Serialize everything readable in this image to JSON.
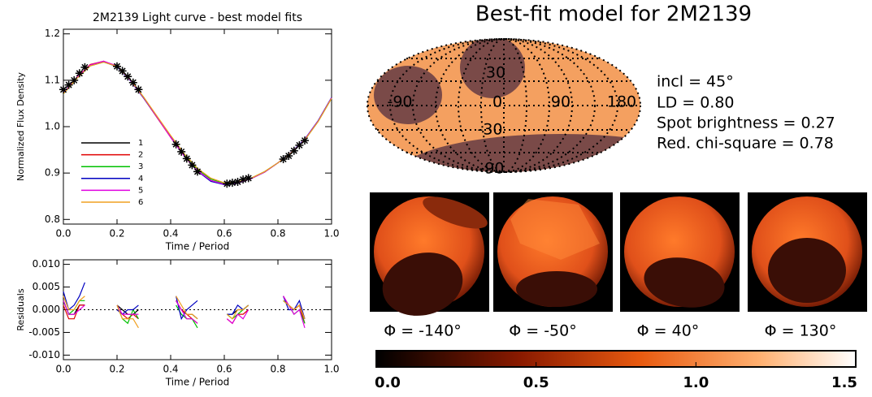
{
  "chart_data": [
    {
      "type": "line",
      "title": "2M2139 Light curve - best model fits",
      "x_label": "Time / Period",
      "y_label": "Normalized Flux Density",
      "xlim": [
        0,
        1
      ],
      "ylim": [
        0.79,
        1.21
      ],
      "xticks": [
        {
          "value": 0,
          "label": "0.0"
        },
        0.2,
        0.4,
        0.6,
        0.8,
        {
          "value": 1,
          "label": "1.0"
        }
      ],
      "yticks": [
        0.8,
        0.9,
        {
          "value": 1,
          "label": "1.0"
        },
        1.1,
        1.2
      ],
      "legend": true,
      "x": [
        0,
        0.05,
        0.1,
        0.15,
        0.2,
        0.25,
        0.3,
        0.35,
        0.4,
        0.45,
        0.5,
        0.55,
        0.6,
        0.65,
        0.7,
        0.75,
        0.8,
        0.85,
        0.9,
        0.95,
        1
      ],
      "series": [
        {
          "name": "1",
          "color": "#000000",
          "values": [
            1.072,
            1.105,
            1.132,
            1.14,
            1.13,
            1.1,
            1.062,
            1.02,
            0.978,
            0.938,
            0.905,
            0.884,
            0.876,
            0.879,
            0.888,
            0.902,
            0.922,
            0.944,
            0.972,
            1.012,
            1.062
          ]
        },
        {
          "name": "2",
          "color": "#e00000",
          "values": [
            1.072,
            1.106,
            1.134,
            1.141,
            1.13,
            1.1,
            1.061,
            1.019,
            0.977,
            0.937,
            0.904,
            0.883,
            0.875,
            0.878,
            0.888,
            0.902,
            0.922,
            0.944,
            0.972,
            1.012,
            1.062
          ]
        },
        {
          "name": "3",
          "color": "#00c000",
          "values": [
            1.071,
            1.104,
            1.131,
            1.139,
            1.13,
            1.101,
            1.063,
            1.021,
            0.979,
            0.94,
            0.908,
            0.887,
            0.878,
            0.88,
            0.889,
            0.903,
            0.922,
            0.944,
            0.971,
            1.011,
            1.061
          ]
        },
        {
          "name": "4",
          "color": "#0000c0",
          "values": [
            1.073,
            1.105,
            1.132,
            1.14,
            1.129,
            1.099,
            1.061,
            1.02,
            0.978,
            0.938,
            0.904,
            0.882,
            0.875,
            0.878,
            0.888,
            0.902,
            0.922,
            0.945,
            0.973,
            1.013,
            1.063
          ]
        },
        {
          "name": "5",
          "color": "#e000e0",
          "values": [
            1.072,
            1.106,
            1.133,
            1.141,
            1.131,
            1.1,
            1.062,
            1.02,
            0.977,
            0.937,
            0.905,
            0.884,
            0.876,
            0.879,
            0.888,
            0.902,
            0.922,
            0.944,
            0.972,
            1.012,
            1.062
          ]
        },
        {
          "name": "6",
          "color": "#f0a020",
          "values": [
            1.071,
            1.104,
            1.131,
            1.139,
            1.13,
            1.101,
            1.063,
            1.022,
            0.981,
            0.942,
            0.91,
            0.889,
            0.879,
            0.881,
            0.889,
            0.903,
            0.922,
            0.944,
            0.971,
            1.011,
            1.061
          ]
        }
      ],
      "observed": {
        "x": [
          0,
          0.02,
          0.04,
          0.06,
          0.08,
          0.2,
          0.22,
          0.24,
          0.26,
          0.28,
          0.42,
          0.44,
          0.46,
          0.48,
          0.5,
          0.61,
          0.63,
          0.65,
          0.67,
          0.69,
          0.82,
          0.84,
          0.86,
          0.88,
          0.9
        ],
        "values": [
          1.08,
          1.09,
          1.1,
          1.115,
          1.128,
          1.13,
          1.12,
          1.108,
          1.095,
          1.08,
          0.962,
          0.946,
          0.931,
          0.917,
          0.903,
          0.877,
          0.879,
          0.881,
          0.886,
          0.889,
          0.93,
          0.937,
          0.948,
          0.96,
          0.97
        ]
      }
    },
    {
      "type": "line",
      "x_label": "Time / Period",
      "y_label": "Residuals",
      "xlim": [
        0,
        1
      ],
      "ylim": [
        -0.011,
        0.011
      ],
      "xticks": [
        {
          "value": 0,
          "label": "0.0"
        },
        0.2,
        0.4,
        0.6,
        0.8,
        {
          "value": 1,
          "label": "1.0"
        }
      ],
      "yticks": [
        {
          "value": -0.01,
          "label": "-0.010"
        },
        {
          "value": -0.005,
          "label": "-0.005"
        },
        {
          "value": 0,
          "label": "0.000"
        },
        {
          "value": 0.005,
          "label": "0.005"
        },
        {
          "value": 0.01,
          "label": "0.010"
        }
      ],
      "zero_line": true,
      "x": [
        0,
        0.02,
        0.04,
        0.06,
        0.08,
        0.14,
        0.2,
        0.22,
        0.24,
        0.26,
        0.28,
        0.35,
        0.42,
        0.44,
        0.46,
        0.48,
        0.5,
        0.55,
        0.61,
        0.63,
        0.65,
        0.67,
        0.69,
        0.75,
        0.82,
        0.84,
        0.86,
        0.88,
        0.9
      ],
      "series": [
        {
          "color": "#000000",
          "values": [
            0.002,
            -0.001,
            -0.001,
            0.001,
            0.001,
            null,
            0.001,
            0,
            -0.001,
            -0.001,
            0,
            null,
            0.002,
            0,
            -0.001,
            -0.001,
            -0.002,
            null,
            -0.001,
            -0.001,
            0,
            0,
            0.001,
            null,
            0.002,
            0.001,
            0,
            0.001,
            -0.002
          ]
        },
        {
          "color": "#e00000",
          "values": [
            0.001,
            -0.002,
            -0.002,
            0.001,
            0.001,
            null,
            0,
            -0.001,
            -0.002,
            -0.001,
            -0.002,
            null,
            0.002,
            0,
            -0.001,
            -0.002,
            -0.003,
            null,
            -0.002,
            -0.003,
            -0.001,
            -0.001,
            0,
            null,
            0.003,
            0.001,
            0,
            0.001,
            -0.003
          ]
        },
        {
          "color": "#00c000",
          "values": [
            0.002,
            -0.001,
            0,
            0.002,
            0.002,
            null,
            0.001,
            -0.002,
            -0.003,
            0,
            -0.002,
            null,
            0.001,
            -0.001,
            -0.002,
            -0.002,
            -0.004,
            null,
            -0.001,
            -0.002,
            -0.001,
            0,
            0.001,
            null,
            0.002,
            0.001,
            -0.001,
            0,
            -0.003
          ]
        },
        {
          "color": "#0000c0",
          "values": [
            0.004,
            0,
            0.001,
            0.003,
            0.006,
            null,
            0,
            -0.001,
            0,
            0,
            0.001,
            null,
            0.003,
            -0.002,
            0,
            0.001,
            0.002,
            null,
            -0.001,
            -0.001,
            0.001,
            0,
            0.001,
            null,
            0.003,
            0,
            0,
            0.002,
            -0.002
          ]
        },
        {
          "color": "#e000e0",
          "values": [
            0.002,
            -0.001,
            -0.001,
            0,
            0.001,
            null,
            0.001,
            -0.001,
            -0.001,
            -0.001,
            -0.001,
            null,
            0.002,
            0,
            -0.002,
            -0.002,
            -0.003,
            null,
            -0.002,
            -0.003,
            -0.001,
            -0.002,
            0,
            null,
            0.003,
            0.001,
            -0.001,
            0,
            -0.004
          ]
        },
        {
          "color": "#f0a020",
          "values": [
            0.003,
            0,
            0,
            0.002,
            0.003,
            null,
            0.001,
            -0.002,
            -0.002,
            -0.002,
            -0.004,
            null,
            0.003,
            0.001,
            -0.001,
            -0.001,
            -0.002,
            null,
            -0.001,
            -0.002,
            0,
            0,
            0.001,
            null,
            0.002,
            0.001,
            0,
            0.001,
            -0.002
          ]
        }
      ]
    }
  ],
  "model": {
    "title": "Best-fit model for 2M2139",
    "lon_labels": [
      "-90",
      "0",
      "90",
      "180"
    ],
    "lat_labels": [
      "30",
      "-30",
      "-90"
    ],
    "params": [
      "incl =  45°",
      "LD = 0.80",
      "Spot brightness = 0.27",
      "Red. chi-square = 0.78"
    ],
    "phases": [
      "Φ = -140°",
      "Φ = -50°",
      "Φ = 40°",
      "Φ = 130°"
    ],
    "colorbar": {
      "xlim": [
        0,
        1.5
      ],
      "xticks": [
        {
          "value": 0,
          "label": "0.0"
        },
        0.5,
        {
          "value": 1,
          "label": "1.0"
        },
        1.5
      ]
    }
  }
}
